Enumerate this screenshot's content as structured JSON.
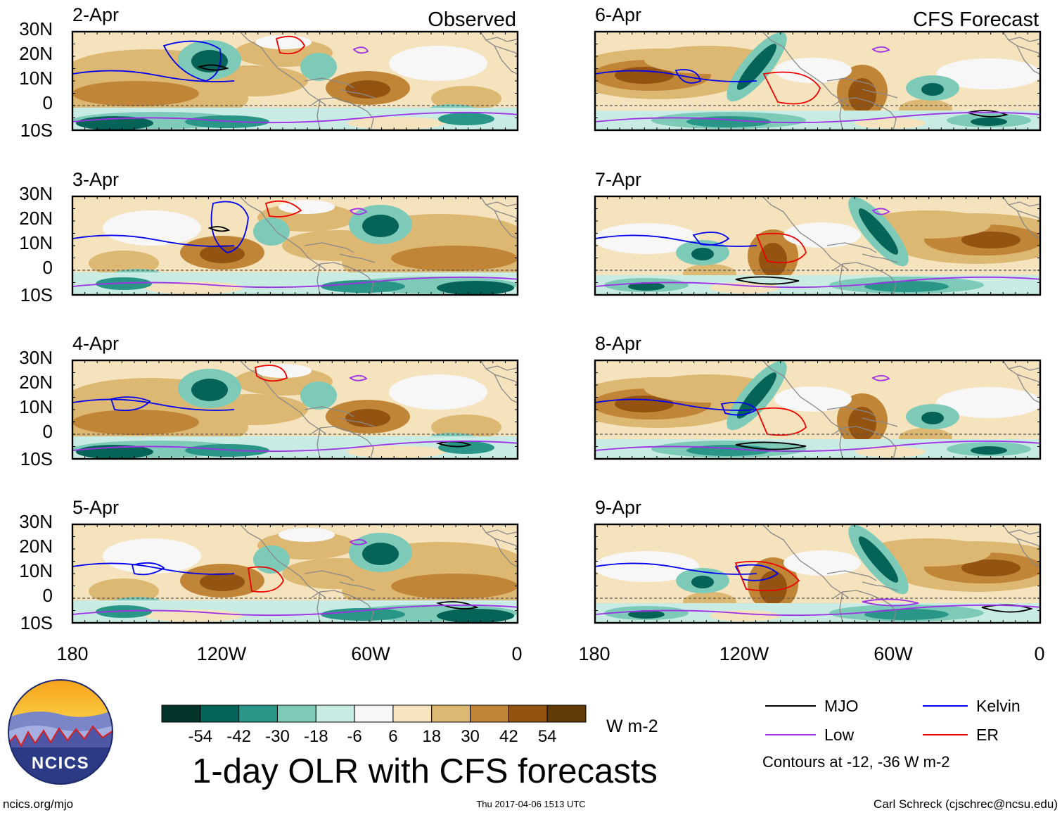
{
  "panel_headers": {
    "observed": "Observed",
    "forecast": "CFS Forecast"
  },
  "panels": [
    {
      "date": "2-Apr"
    },
    {
      "date": "3-Apr"
    },
    {
      "date": "4-Apr"
    },
    {
      "date": "5-Apr"
    },
    {
      "date": "6-Apr"
    },
    {
      "date": "7-Apr"
    },
    {
      "date": "8-Apr"
    },
    {
      "date": "9-Apr"
    }
  ],
  "lat_labels": [
    "30N",
    "20N",
    "10N",
    "0",
    "10S"
  ],
  "lon_labels": [
    "180",
    "120W",
    "60W",
    "0"
  ],
  "colorbar": {
    "colors": [
      "#03352c",
      "#066357",
      "#2a9688",
      "#7ecab9",
      "#c8ebe3",
      "#f7f7f7",
      "#f5e4bd",
      "#ddb872",
      "#c08537",
      "#955311",
      "#613a07"
    ],
    "labels": [
      "-54",
      "-42",
      "-30",
      "-18",
      "-6",
      "6",
      "18",
      "30",
      "42",
      "54"
    ],
    "units": "W m-2"
  },
  "main_title": "1-day OLR with CFS forecasts",
  "legend": {
    "items": [
      {
        "label": "MJO",
        "color": "#000000"
      },
      {
        "label": "Kelvin",
        "color": "#0000ee"
      },
      {
        "label": "Low",
        "color": "#a030e8"
      },
      {
        "label": "ER",
        "color": "#ee0000"
      }
    ],
    "note": "Contours at -12, -36 W m-2"
  },
  "logo_text": "NCICS",
  "footer": {
    "left": "ncics.org/mjo",
    "center": "Thu 2017-04-06 1513 UTC",
    "right": "Carl Schreck (cjschrec@ncsu.edu)"
  },
  "colors": {
    "mjo": "#000000",
    "kelvin": "#0000ee",
    "low": "#a030e8",
    "er": "#ee0000",
    "land": "#888888"
  }
}
